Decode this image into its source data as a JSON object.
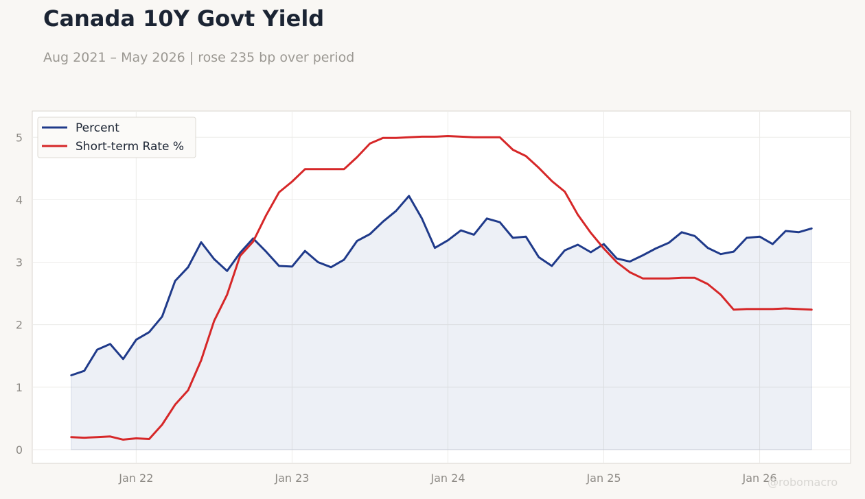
{
  "title": "Canada 10Y Govt Yield",
  "subtitle": "Aug 2021 – May 2026 | rose 235 bp over period",
  "watermark": "@robomacro",
  "chart_data": {
    "type": "line",
    "x": [
      "2021-08",
      "2021-09",
      "2021-10",
      "2021-11",
      "2021-12",
      "2022-01",
      "2022-02",
      "2022-03",
      "2022-04",
      "2022-05",
      "2022-06",
      "2022-07",
      "2022-08",
      "2022-09",
      "2022-10",
      "2022-11",
      "2022-12",
      "2023-01",
      "2023-02",
      "2023-03",
      "2023-04",
      "2023-05",
      "2023-06",
      "2023-07",
      "2023-08",
      "2023-09",
      "2023-10",
      "2023-11",
      "2023-12",
      "2024-01",
      "2024-02",
      "2024-03",
      "2024-04",
      "2024-05",
      "2024-06",
      "2024-07",
      "2024-08",
      "2024-09",
      "2024-10",
      "2024-11",
      "2024-12",
      "2025-01",
      "2025-02",
      "2025-03",
      "2025-04",
      "2025-05",
      "2025-06",
      "2025-07",
      "2025-08",
      "2025-09",
      "2025-10",
      "2025-11",
      "2025-12",
      "2026-01",
      "2026-02",
      "2026-03",
      "2026-04",
      "2026-05"
    ],
    "series": [
      {
        "name": "Percent",
        "color": "#1f3a8a",
        "fill": true,
        "values": [
          1.19,
          1.26,
          1.6,
          1.69,
          1.45,
          1.76,
          1.88,
          2.13,
          2.7,
          2.92,
          3.32,
          3.05,
          2.86,
          3.15,
          3.38,
          3.17,
          2.94,
          2.93,
          3.18,
          3.0,
          2.92,
          3.04,
          3.34,
          3.45,
          3.65,
          3.82,
          4.06,
          3.7,
          3.23,
          3.35,
          3.51,
          3.44,
          3.7,
          3.64,
          3.39,
          3.41,
          3.08,
          2.94,
          3.19,
          3.28,
          3.16,
          3.29,
          3.06,
          3.01,
          3.11,
          3.22,
          3.31,
          3.48,
          3.42,
          3.23,
          3.13,
          3.17,
          3.39,
          3.41,
          3.29,
          3.5,
          3.48,
          3.54
        ]
      },
      {
        "name": "Short-term Rate %",
        "color": "#d62728",
        "fill": false,
        "values": [
          0.2,
          0.19,
          0.2,
          0.21,
          0.16,
          0.18,
          0.17,
          0.4,
          0.72,
          0.95,
          1.43,
          2.06,
          2.48,
          3.1,
          3.33,
          3.75,
          4.12,
          4.29,
          4.49,
          4.49,
          4.49,
          4.49,
          4.68,
          4.9,
          4.99,
          4.99,
          5.0,
          5.01,
          5.01,
          5.02,
          5.01,
          5.0,
          5.0,
          5.0,
          4.8,
          4.7,
          4.51,
          4.3,
          4.13,
          3.76,
          3.47,
          3.22,
          3.0,
          2.84,
          2.74,
          2.74,
          2.74,
          2.75,
          2.75,
          2.65,
          2.48,
          2.24,
          2.25,
          2.25,
          2.25,
          2.26,
          2.25,
          2.24
        ]
      }
    ],
    "xtick_labels": [
      "Jan 22",
      "Jan 23",
      "Jan 24",
      "Jan 25",
      "Jan 26"
    ],
    "xtick_dates": [
      "2022-01",
      "2023-01",
      "2024-01",
      "2025-01",
      "2026-01"
    ],
    "yticks": [
      0,
      1,
      2,
      3,
      4,
      5
    ],
    "ylim": [
      -0.22,
      5.42
    ],
    "xlim": [
      "2021-05",
      "2026-08"
    ],
    "grid": true,
    "legend": "top-left",
    "xlabel": "",
    "ylabel": ""
  }
}
